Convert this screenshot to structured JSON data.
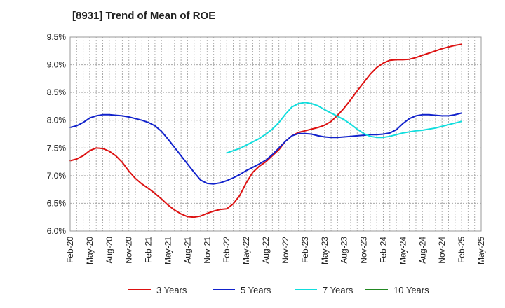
{
  "chart_data": {
    "type": "line",
    "title": "[8931]  Trend of Mean of ROE",
    "xlabel": "",
    "ylabel": "",
    "x_tick_labels": [
      "Feb-20",
      "May-20",
      "Aug-20",
      "Nov-20",
      "Feb-21",
      "May-21",
      "Aug-21",
      "Nov-21",
      "Feb-22",
      "May-22",
      "Aug-22",
      "Nov-22",
      "Feb-23",
      "May-23",
      "Aug-23",
      "Nov-23",
      "Feb-24",
      "May-24",
      "Aug-24",
      "Nov-24",
      "Feb-25",
      "May-25"
    ],
    "y_tick_labels": [
      "6.0%",
      "6.5%",
      "7.0%",
      "7.5%",
      "8.0%",
      "8.5%",
      "9.0%",
      "9.5%"
    ],
    "ylim": [
      6.0,
      9.5
    ],
    "y_ticks": [
      6.0,
      6.5,
      7.0,
      7.5,
      8.0,
      8.5,
      9.0,
      9.5
    ],
    "grid": true,
    "legend_position": "bottom",
    "series": [
      {
        "name": "3 Years",
        "color": "#dd1111",
        "values": [
          [
            "Feb-20",
            7.27
          ],
          [
            "Mar-20",
            7.3
          ],
          [
            "Apr-20",
            7.36
          ],
          [
            "May-20",
            7.45
          ],
          [
            "Jun-20",
            7.5
          ],
          [
            "Jul-20",
            7.49
          ],
          [
            "Aug-20",
            7.44
          ],
          [
            "Sep-20",
            7.36
          ],
          [
            "Oct-20",
            7.24
          ],
          [
            "Nov-20",
            7.08
          ],
          [
            "Dec-20",
            6.95
          ],
          [
            "Jan-21",
            6.85
          ],
          [
            "Feb-21",
            6.77
          ],
          [
            "Mar-21",
            6.68
          ],
          [
            "Apr-21",
            6.58
          ],
          [
            "May-21",
            6.47
          ],
          [
            "Jun-21",
            6.38
          ],
          [
            "Jul-21",
            6.31
          ],
          [
            "Aug-21",
            6.26
          ],
          [
            "Sep-21",
            6.25
          ],
          [
            "Oct-21",
            6.27
          ],
          [
            "Nov-21",
            6.32
          ],
          [
            "Dec-21",
            6.36
          ],
          [
            "Jan-22",
            6.39
          ],
          [
            "Feb-22",
            6.4
          ],
          [
            "Mar-22",
            6.49
          ],
          [
            "Apr-22",
            6.64
          ],
          [
            "May-22",
            6.87
          ],
          [
            "Jun-22",
            7.06
          ],
          [
            "Jul-22",
            7.17
          ],
          [
            "Aug-22",
            7.25
          ],
          [
            "Sep-22",
            7.36
          ],
          [
            "Oct-22",
            7.47
          ],
          [
            "Nov-22",
            7.62
          ],
          [
            "Dec-22",
            7.72
          ],
          [
            "Jan-23",
            7.78
          ],
          [
            "Feb-23",
            7.81
          ],
          [
            "Mar-23",
            7.84
          ],
          [
            "Apr-23",
            7.87
          ],
          [
            "May-23",
            7.91
          ],
          [
            "Jun-23",
            7.98
          ],
          [
            "Jul-23",
            8.09
          ],
          [
            "Aug-23",
            8.22
          ],
          [
            "Sep-23",
            8.37
          ],
          [
            "Oct-23",
            8.53
          ],
          [
            "Nov-23",
            8.68
          ],
          [
            "Dec-23",
            8.83
          ],
          [
            "Jan-24",
            8.95
          ],
          [
            "Feb-24",
            9.03
          ],
          [
            "Mar-24",
            9.08
          ],
          [
            "Apr-24",
            9.09
          ],
          [
            "May-24",
            9.09
          ],
          [
            "Jun-24",
            9.1
          ],
          [
            "Jul-24",
            9.13
          ],
          [
            "Aug-24",
            9.17
          ],
          [
            "Sep-24",
            9.21
          ],
          [
            "Oct-24",
            9.25
          ],
          [
            "Nov-24",
            9.29
          ],
          [
            "Dec-24",
            9.32
          ],
          [
            "Jan-25",
            9.35
          ],
          [
            "Feb-25",
            9.37
          ]
        ]
      },
      {
        "name": "5 Years",
        "color": "#1122cc",
        "values": [
          [
            "Feb-20",
            7.87
          ],
          [
            "Mar-20",
            7.9
          ],
          [
            "Apr-20",
            7.96
          ],
          [
            "May-20",
            8.04
          ],
          [
            "Jun-20",
            8.08
          ],
          [
            "Jul-20",
            8.1
          ],
          [
            "Aug-20",
            8.1
          ],
          [
            "Sep-20",
            8.09
          ],
          [
            "Oct-20",
            8.08
          ],
          [
            "Nov-20",
            8.06
          ],
          [
            "Dec-20",
            8.03
          ],
          [
            "Jan-21",
            8.0
          ],
          [
            "Feb-21",
            7.96
          ],
          [
            "Mar-21",
            7.9
          ],
          [
            "Apr-21",
            7.8
          ],
          [
            "May-21",
            7.66
          ],
          [
            "Jun-21",
            7.51
          ],
          [
            "Jul-21",
            7.36
          ],
          [
            "Aug-21",
            7.21
          ],
          [
            "Sep-21",
            7.06
          ],
          [
            "Oct-21",
            6.92
          ],
          [
            "Nov-21",
            6.86
          ],
          [
            "Dec-21",
            6.85
          ],
          [
            "Jan-22",
            6.87
          ],
          [
            "Feb-22",
            6.91
          ],
          [
            "Mar-22",
            6.96
          ],
          [
            "Apr-22",
            7.02
          ],
          [
            "May-22",
            7.09
          ],
          [
            "Jun-22",
            7.15
          ],
          [
            "Jul-22",
            7.21
          ],
          [
            "Aug-22",
            7.28
          ],
          [
            "Sep-22",
            7.38
          ],
          [
            "Oct-22",
            7.5
          ],
          [
            "Nov-22",
            7.62
          ],
          [
            "Dec-22",
            7.72
          ],
          [
            "Jan-23",
            7.76
          ],
          [
            "Feb-23",
            7.76
          ],
          [
            "Mar-23",
            7.75
          ],
          [
            "Apr-23",
            7.72
          ],
          [
            "May-23",
            7.7
          ],
          [
            "Jun-23",
            7.69
          ],
          [
            "Jul-23",
            7.69
          ],
          [
            "Aug-23",
            7.7
          ],
          [
            "Sep-23",
            7.71
          ],
          [
            "Oct-23",
            7.72
          ],
          [
            "Nov-23",
            7.73
          ],
          [
            "Dec-23",
            7.74
          ],
          [
            "Jan-24",
            7.74
          ],
          [
            "Feb-24",
            7.75
          ],
          [
            "Mar-24",
            7.77
          ],
          [
            "Apr-24",
            7.83
          ],
          [
            "May-24",
            7.94
          ],
          [
            "Jun-24",
            8.03
          ],
          [
            "Jul-24",
            8.08
          ],
          [
            "Aug-24",
            8.1
          ],
          [
            "Sep-24",
            8.1
          ],
          [
            "Oct-24",
            8.09
          ],
          [
            "Nov-24",
            8.08
          ],
          [
            "Dec-24",
            8.08
          ],
          [
            "Jan-25",
            8.1
          ],
          [
            "Feb-25",
            8.13
          ]
        ]
      },
      {
        "name": "7 Years",
        "color": "#11dddd",
        "values": [
          [
            "Feb-22",
            7.41
          ],
          [
            "Mar-22",
            7.45
          ],
          [
            "Apr-22",
            7.49
          ],
          [
            "May-22",
            7.55
          ],
          [
            "Jun-22",
            7.61
          ],
          [
            "Jul-22",
            7.67
          ],
          [
            "Aug-22",
            7.75
          ],
          [
            "Sep-22",
            7.84
          ],
          [
            "Oct-22",
            7.96
          ],
          [
            "Nov-22",
            8.11
          ],
          [
            "Dec-22",
            8.24
          ],
          [
            "Jan-23",
            8.3
          ],
          [
            "Feb-23",
            8.32
          ],
          [
            "Mar-23",
            8.3
          ],
          [
            "Apr-23",
            8.26
          ],
          [
            "May-23",
            8.19
          ],
          [
            "Jun-23",
            8.13
          ],
          [
            "Jul-23",
            8.07
          ],
          [
            "Aug-23",
            8.01
          ],
          [
            "Sep-23",
            7.93
          ],
          [
            "Oct-23",
            7.84
          ],
          [
            "Nov-23",
            7.76
          ],
          [
            "Dec-23",
            7.71
          ],
          [
            "Jan-24",
            7.69
          ],
          [
            "Feb-24",
            7.69
          ],
          [
            "Mar-24",
            7.71
          ],
          [
            "Apr-24",
            7.74
          ],
          [
            "May-24",
            7.77
          ],
          [
            "Jun-24",
            7.79
          ],
          [
            "Jul-24",
            7.81
          ],
          [
            "Aug-24",
            7.82
          ],
          [
            "Sep-24",
            7.84
          ],
          [
            "Oct-24",
            7.86
          ],
          [
            "Nov-24",
            7.89
          ],
          [
            "Dec-24",
            7.92
          ],
          [
            "Jan-25",
            7.95
          ],
          [
            "Feb-25",
            7.98
          ]
        ]
      },
      {
        "name": "10 Years",
        "color": "#228822",
        "values": []
      }
    ]
  }
}
